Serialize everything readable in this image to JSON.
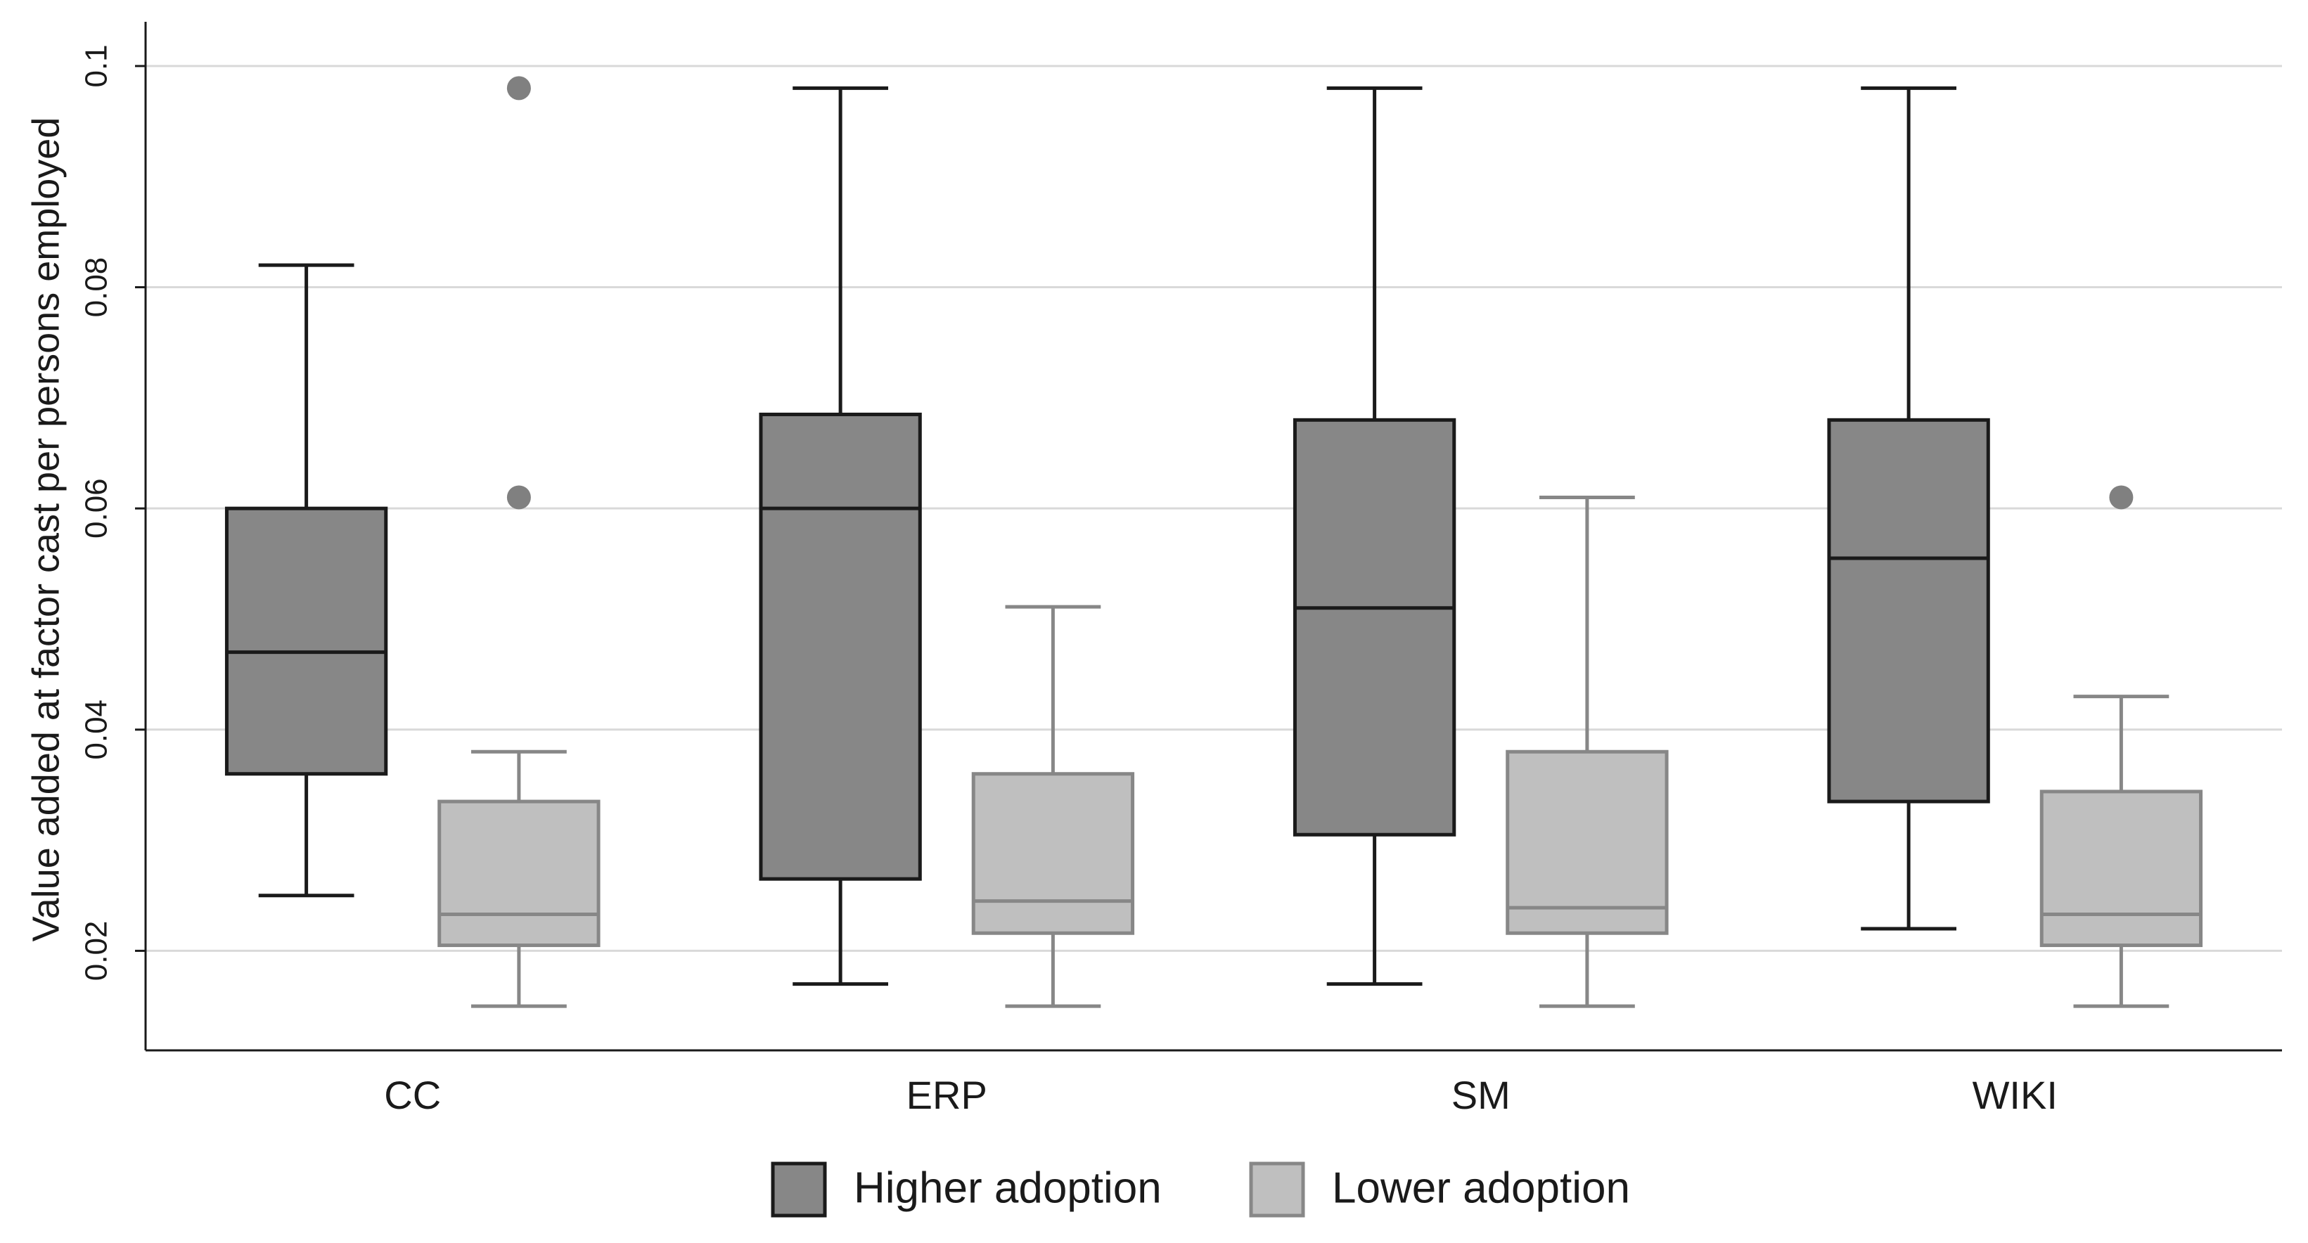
{
  "chart_data": {
    "type": "box",
    "y_label": "Value added at factor cast per persons employed",
    "categories": [
      "CC",
      "ERP",
      "SM",
      "WIKI"
    ],
    "ylim": [
      0.011,
      0.104
    ],
    "yticks": [
      0.02,
      0.04,
      0.06,
      0.08,
      0.1
    ],
    "grid": true,
    "legend": "bottom",
    "series": [
      {
        "name": "Higher adoption",
        "color": "#878787",
        "edge_color": "#1a1a1a",
        "whislo": [
          0.025,
          0.017,
          0.017,
          0.022
        ],
        "q1": [
          0.036,
          0.0265,
          0.0305,
          0.0335
        ],
        "med": [
          0.047,
          0.06,
          0.051,
          0.0555
        ],
        "q3": [
          0.06,
          0.0685,
          0.068,
          0.068
        ],
        "whishi": [
          0.082,
          0.098,
          0.098,
          0.098
        ],
        "outliers": [
          [],
          [],
          [],
          []
        ]
      },
      {
        "name": "Lower adoption",
        "color": "#bfbfbf",
        "edge_color": "#878787",
        "whislo": [
          0.015,
          0.015,
          0.015,
          0.015
        ],
        "q1": [
          0.0205,
          0.0216,
          0.0216,
          0.0205
        ],
        "med": [
          0.0233,
          0.0245,
          0.0239,
          0.0233
        ],
        "q3": [
          0.0335,
          0.036,
          0.038,
          0.0344
        ],
        "whishi": [
          0.038,
          0.0511,
          0.061,
          0.043
        ],
        "outliers": [
          [
            0.098,
            0.061
          ],
          [],
          [],
          [
            0.061
          ]
        ]
      }
    ]
  }
}
